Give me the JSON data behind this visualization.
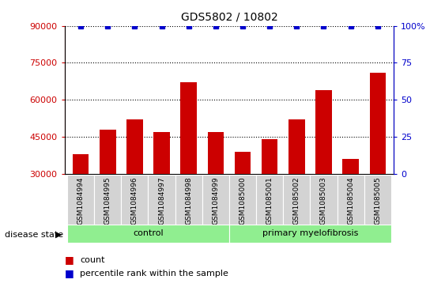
{
  "title": "GDS5802 / 10802",
  "samples": [
    "GSM1084994",
    "GSM1084995",
    "GSM1084996",
    "GSM1084997",
    "GSM1084998",
    "GSM1084999",
    "GSM1085000",
    "GSM1085001",
    "GSM1085002",
    "GSM1085003",
    "GSM1085004",
    "GSM1085005"
  ],
  "counts": [
    38000,
    48000,
    52000,
    47000,
    67000,
    47000,
    39000,
    44000,
    52000,
    64000,
    36000,
    71000
  ],
  "percentile_ranks": [
    100,
    100,
    100,
    100,
    100,
    100,
    100,
    100,
    100,
    100,
    100,
    100
  ],
  "bar_color": "#cc0000",
  "marker_color": "#0000cc",
  "ylim_left": [
    30000,
    90000
  ],
  "ylim_right": [
    0,
    100
  ],
  "yticks_left": [
    30000,
    45000,
    60000,
    75000,
    90000
  ],
  "yticks_right": [
    0,
    25,
    50,
    75,
    100
  ],
  "ytick_labels_right": [
    "0",
    "25",
    "50",
    "75",
    "100%"
  ],
  "groups": [
    {
      "label": "control",
      "start": 0,
      "end": 5,
      "color": "#90ee90"
    },
    {
      "label": "primary myelofibrosis",
      "start": 6,
      "end": 11,
      "color": "#90ee90"
    }
  ],
  "disease_state_label": "disease state",
  "legend_items": [
    {
      "label": "count",
      "color": "#cc0000"
    },
    {
      "label": "percentile rank within the sample",
      "color": "#0000cc"
    }
  ],
  "ticklabel_bg": "#d3d3d3",
  "dotted_lines": [
    45000,
    60000,
    75000,
    90000
  ]
}
